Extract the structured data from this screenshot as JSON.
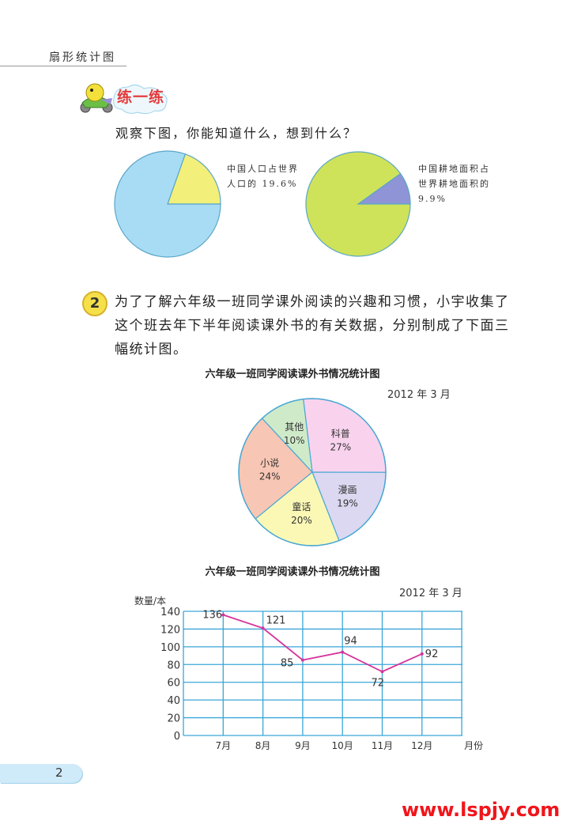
{
  "header": {
    "title": "扇形统计图"
  },
  "practice": {
    "label": "练一练",
    "question": "观察下图，你能知道什么，想到什么？"
  },
  "problem2": {
    "number": "2",
    "lines": [
      "为了了解六年级一班同学课外阅读的兴趣和习惯，小宇收集了",
      "这个班去年下半年阅读课外书的有关数据，分别制成了下面三",
      "幅统计图。"
    ]
  },
  "colors": {
    "grid": "#3aa6d8",
    "line": "#d6339c",
    "title_red": "#e43c3c",
    "watermark": "#f0151b"
  },
  "chart_data": [
    {
      "type": "pie",
      "slices": [
        {
          "label": "中国人口占世界人口的 19.6%",
          "value": 19.6,
          "color": "#f2f07a"
        },
        {
          "label": "",
          "value": 80.4,
          "color": "#a8dcf5"
        }
      ],
      "annotation": [
        "中国人口占世界",
        "人口的 19.6%"
      ]
    },
    {
      "type": "pie",
      "slices": [
        {
          "label": "中国耕地面积占世界耕地面积的 9.9%",
          "value": 9.9,
          "color": "#8e94d6"
        },
        {
          "label": "",
          "value": 90.1,
          "color": "#cfe35a"
        }
      ],
      "annotation": [
        "中国耕地面积占",
        "世界耕地面积的",
        "9.9%"
      ]
    },
    {
      "type": "pie",
      "title": "六年级一班同学阅读课外书情况统计图",
      "date": "2012 年 3 月",
      "slices": [
        {
          "label": "科普",
          "value": 27,
          "text": "27%",
          "color": "#f9d3ee"
        },
        {
          "label": "漫画",
          "value": 19,
          "text": "19%",
          "color": "#dcd8f1"
        },
        {
          "label": "童话",
          "value": 20,
          "text": "20%",
          "color": "#fbf8b6"
        },
        {
          "label": "小说",
          "value": 24,
          "text": "24%",
          "color": "#f8c6b4"
        },
        {
          "label": "其他",
          "value": 10,
          "text": "10%",
          "color": "#cfeac9"
        }
      ]
    },
    {
      "type": "line",
      "title": "六年级一班同学阅读课外书情况统计图",
      "date": "2012 年 3 月",
      "ylabel": "数量/本",
      "xlabel": "月份",
      "categories": [
        "7月",
        "8月",
        "9月",
        "10月",
        "11月",
        "12月"
      ],
      "values": [
        136,
        121,
        85,
        94,
        72,
        92
      ],
      "ylim": [
        0,
        140
      ],
      "yticks": [
        "0",
        "20",
        "40",
        "60",
        "80",
        "100",
        "120",
        "140"
      ],
      "grid": true
    }
  ],
  "footer": {
    "page_number": "2",
    "watermark": "www.lspjy.com"
  }
}
